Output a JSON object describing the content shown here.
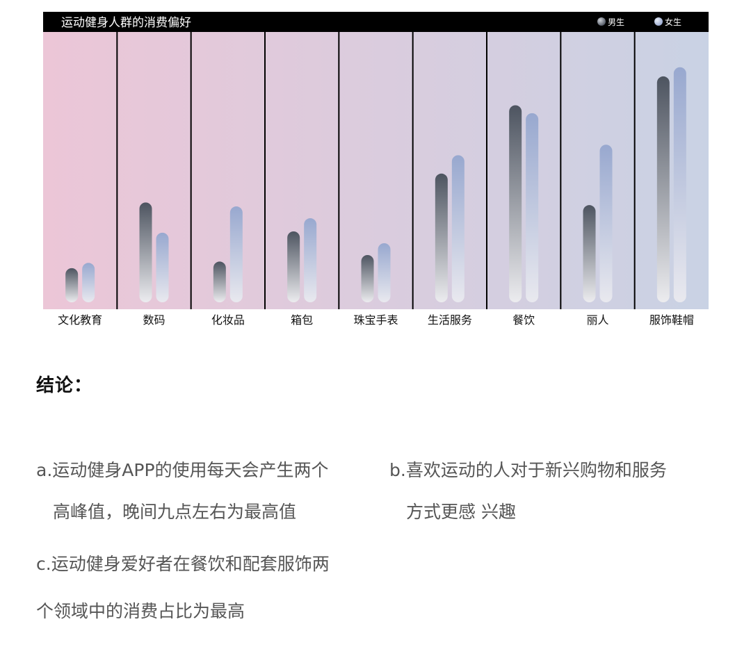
{
  "chart_data": {
    "type": "bar",
    "title": "运动健身人群的消费偏好",
    "categories": [
      "文化教育",
      "数码",
      "化妆品",
      "箱包",
      "珠宝手表",
      "生活服务",
      "餐饮",
      "丽人",
      "服饰鞋帽"
    ],
    "series": [
      {
        "name": "男生",
        "values": [
          13,
          38,
          15.5,
          27,
          18,
          49,
          75,
          37,
          86
        ]
      },
      {
        "name": "女生",
        "values": [
          15,
          26.5,
          36.5,
          32,
          22.5,
          56,
          72,
          60,
          89.5
        ]
      }
    ],
    "ylim": [
      0,
      100
    ],
    "legend_position": "top-right",
    "colors": {
      "male_top": "#4d5460",
      "male_bottom": "#ececef",
      "female_top": "#98a8cf",
      "female_bottom": "#e9e9ef",
      "header_bg": "#000000",
      "panel_left": "#ecc6d7",
      "panel_right": "#c9d2e4"
    }
  },
  "conclusion": {
    "title": "结论：",
    "a_line1": "a.运动健身APP的使用每天会产生两个",
    "a_line2": "高峰值，晚间九点左右为最高值",
    "b_line1": "b.喜欢运动的人对于新兴购物和服务",
    "b_line2": "方式更感 兴趣",
    "c_line1": "c.运动健身爱好者在餐饮和配套服饰两",
    "c_line2": "个领域中的消费占比为最高"
  }
}
